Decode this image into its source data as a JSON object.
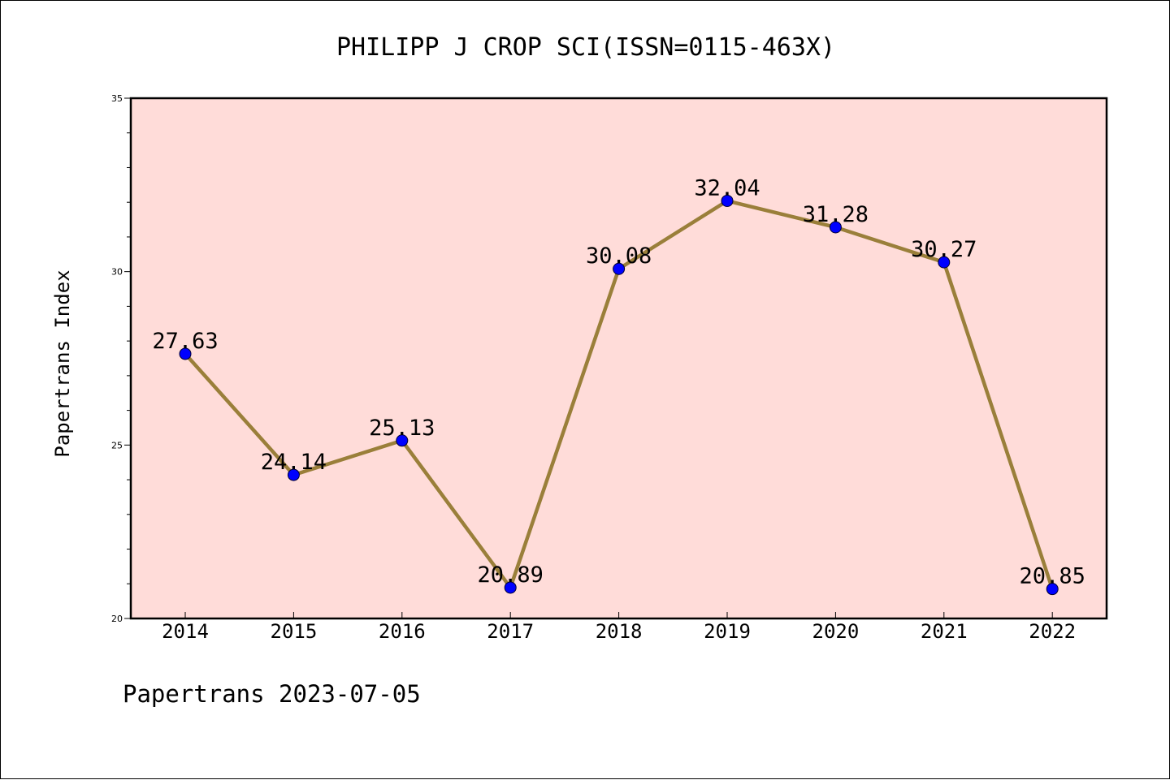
{
  "chart_data": {
    "type": "line",
    "title": "PHILIPP J CROP SCI(ISSN=0115-463X)",
    "xlabel": "",
    "ylabel": "Papertrans Index",
    "categories": [
      "2014",
      "2015",
      "2016",
      "2017",
      "2018",
      "2019",
      "2020",
      "2021",
      "2022"
    ],
    "series": [
      {
        "values": [
          27.63,
          24.14,
          25.13,
          20.89,
          30.08,
          32.04,
          31.28,
          30.27,
          20.85
        ],
        "labels": [
          "27.63",
          "24.14",
          "25.13",
          "20.89",
          "30.08",
          "32.04",
          "31.28",
          "30.27",
          "20.85"
        ]
      }
    ],
    "ylim": [
      20,
      35
    ],
    "yticks": [
      "20",
      "25",
      "30",
      "35"
    ],
    "grid": false,
    "colors": {
      "plot_background": "#ffdcd9",
      "line": "#9a7f3a",
      "marker": "#0000ff"
    }
  },
  "footer": "Papertrans 2023-07-05"
}
